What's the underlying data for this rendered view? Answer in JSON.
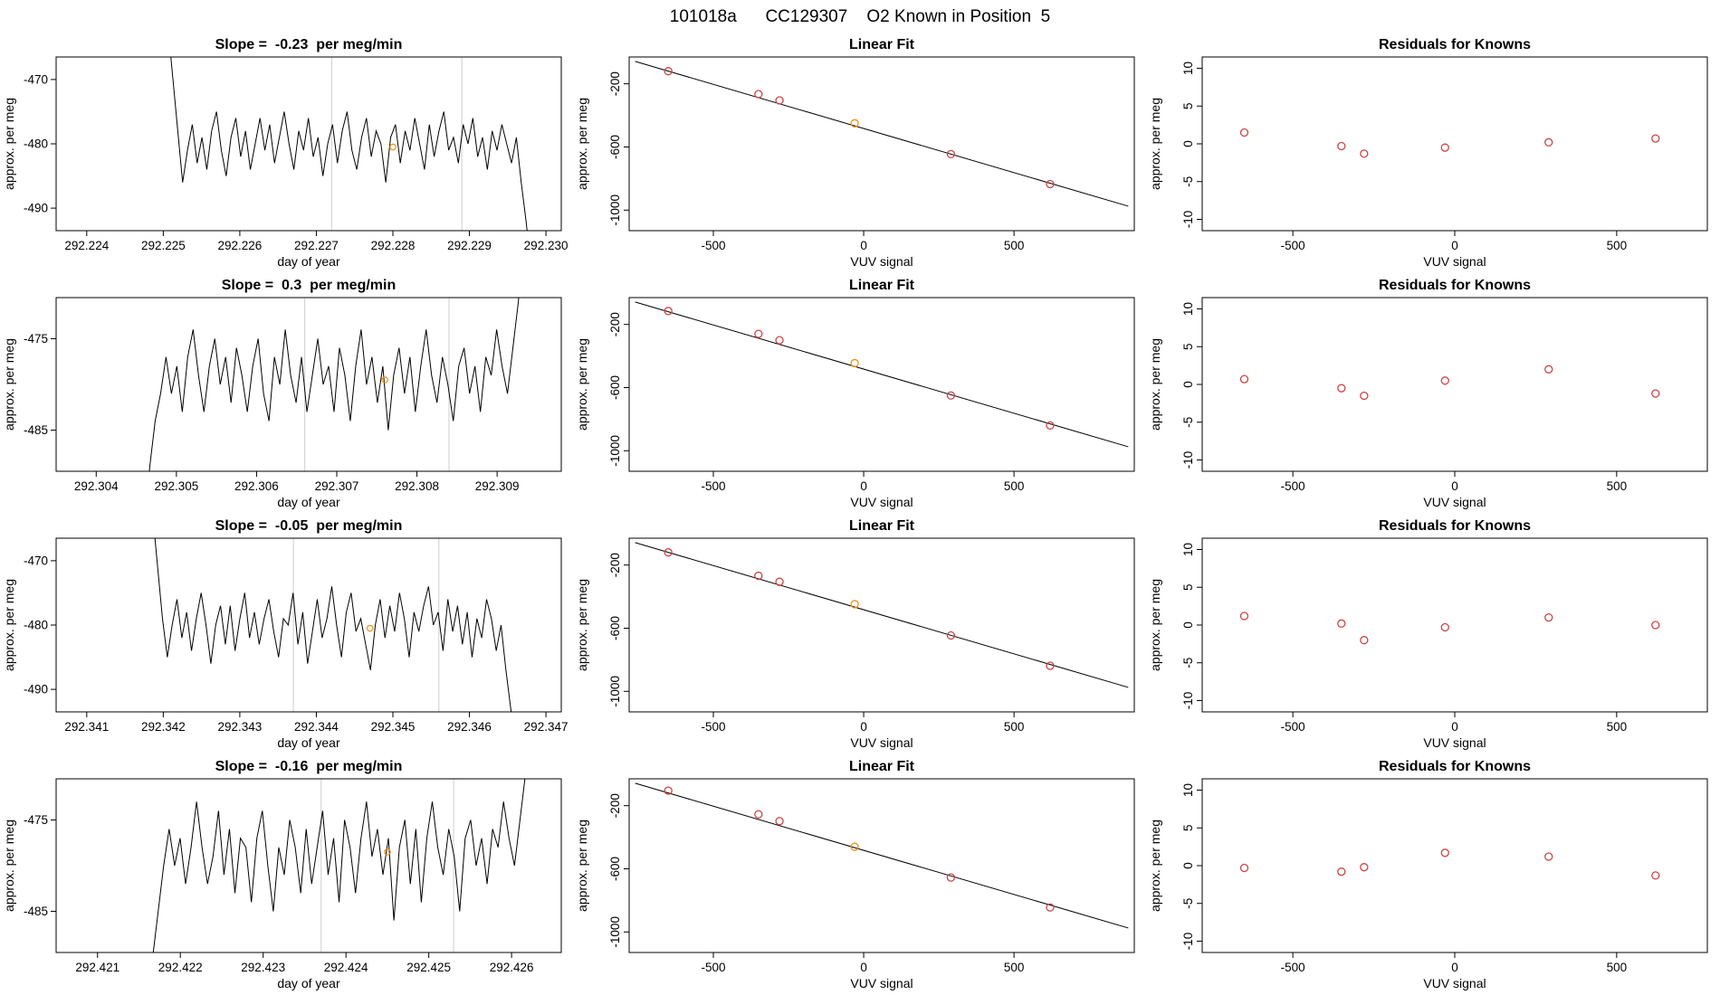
{
  "header": {
    "title": "101018a      CC129307    O2 Known in Position  5"
  },
  "colors": {
    "line": "#000000",
    "grid": "#d6d6d6",
    "point": "#cc4444",
    "orange": "#ef9118"
  },
  "chart_data": [
    {
      "type": "line",
      "title": "Slope =  -0.23  per meg/min",
      "xlabel": "day of year",
      "ylabel": "approx. per meg",
      "xlim": [
        292.2236,
        292.2302
      ],
      "ylim": [
        -493.5,
        -466.5
      ],
      "xticks": {
        "values": [
          292.224,
          292.225,
          292.226,
          292.227,
          292.228,
          292.229,
          292.23
        ],
        "labels": [
          "292.224",
          "292.225",
          "292.226",
          "292.227",
          "292.228",
          "292.229",
          "292.230"
        ]
      },
      "yticks": {
        "values": [
          -470,
          -480,
          -490
        ],
        "labels": [
          "-470",
          "-480",
          "-490"
        ]
      },
      "ytick_rotated": false,
      "vlines": [
        292.2272,
        292.2289
      ],
      "series": {
        "x_start": 292.225,
        "x_step": 6.32e-05,
        "y": [
          -455,
          -462,
          -470,
          -478,
          -486,
          -481,
          -477,
          -483,
          -479,
          -484,
          -478,
          -475,
          -481,
          -485,
          -479,
          -476,
          -482,
          -478,
          -484,
          -480,
          -476,
          -481,
          -477,
          -483,
          -479,
          -475,
          -480,
          -484,
          -478,
          -481,
          -476,
          -482,
          -479,
          -485,
          -480,
          -477,
          -483,
          -478,
          -475,
          -481,
          -484,
          -479,
          -476,
          -482,
          -478,
          -480,
          -486,
          -479,
          -477,
          -483,
          -478,
          -481,
          -476,
          -480,
          -484,
          -477,
          -482,
          -478,
          -475,
          -481,
          -479,
          -483,
          -477,
          -480,
          -476,
          -482,
          -479,
          -484,
          -478,
          -481,
          -477,
          -480,
          -483,
          -479,
          -486,
          -492,
          -499
        ]
      },
      "marker": {
        "x": 292.228,
        "y": -480.5
      }
    },
    {
      "type": "scatter",
      "title": "Linear Fit",
      "xlabel": "VUV signal",
      "ylabel": "approx. per meg",
      "xlim": [
        -780,
        900
      ],
      "ylim": [
        -1130,
        -30
      ],
      "xticks": {
        "values": [
          -500,
          0,
          500
        ],
        "labels": [
          "-500",
          "0",
          "500"
        ]
      },
      "yticks": {
        "values": [
          -200,
          -600,
          -1000
        ],
        "labels": [
          "-200",
          "-600",
          "-1000"
        ]
      },
      "ytick_rotated": true,
      "fit_line": [
        [
          -760,
          -58
        ],
        [
          880,
          -975
        ]
      ],
      "points": {
        "x": [
          -650,
          -350,
          -280,
          -30,
          290,
          620
        ],
        "y": [
          -120,
          -265,
          -305,
          -450,
          -645,
          -835
        ],
        "colors": [
          "red",
          "red",
          "red",
          "orange",
          "red",
          "red"
        ]
      }
    },
    {
      "type": "scatter",
      "title": "Residuals for Knowns",
      "xlabel": "VUV signal",
      "ylabel": "approx. per meg",
      "xlim": [
        -780,
        780
      ],
      "ylim": [
        -11.5,
        11.5
      ],
      "xticks": {
        "values": [
          -500,
          0,
          500
        ],
        "labels": [
          "-500",
          "0",
          "500"
        ]
      },
      "yticks": {
        "values": [
          10,
          5,
          0,
          -5,
          -10
        ],
        "labels": [
          "10",
          "5",
          "0",
          "-5",
          "-10"
        ]
      },
      "ytick_rotated": true,
      "points": {
        "x": [
          -650,
          -350,
          -280,
          -30,
          290,
          620
        ],
        "y": [
          1.5,
          -0.3,
          -1.3,
          -0.5,
          0.2,
          0.7
        ],
        "colors": [
          "red",
          "red",
          "red",
          "red",
          "red",
          "red"
        ]
      }
    },
    {
      "type": "line",
      "title": "Slope =  0.3  per meg/min",
      "xlabel": "day of year",
      "ylabel": "approx. per meg",
      "xlim": [
        292.3035,
        292.3098
      ],
      "ylim": [
        -489.5,
        -470.5
      ],
      "xticks": {
        "values": [
          292.304,
          292.305,
          292.306,
          292.307,
          292.308,
          292.309
        ],
        "labels": [
          "292.304",
          "292.305",
          "292.306",
          "292.307",
          "292.308",
          "292.309"
        ]
      },
      "yticks": {
        "values": [
          -475,
          -485
        ],
        "labels": [
          "-475",
          "-485"
        ]
      },
      "ytick_rotated": false,
      "vlines": [
        292.3066,
        292.3084
      ],
      "series": {
        "x_start": 292.3046,
        "x_step": 6.76e-05,
        "y": [
          -496,
          -489,
          -484,
          -481,
          -477,
          -481,
          -478,
          -483,
          -477,
          -474,
          -479,
          -483,
          -478,
          -475,
          -480,
          -477,
          -482,
          -476,
          -479,
          -483,
          -478,
          -475,
          -481,
          -484,
          -477,
          -480,
          -474,
          -479,
          -482,
          -477,
          -483,
          -479,
          -475,
          -480,
          -478,
          -483,
          -476,
          -479,
          -484,
          -478,
          -474,
          -480,
          -477,
          -482,
          -478,
          -485,
          -479,
          -476,
          -481,
          -477,
          -483,
          -478,
          -474,
          -479,
          -482,
          -477,
          -480,
          -484,
          -478,
          -476,
          -481,
          -478,
          -483,
          -477,
          -479,
          -474,
          -478,
          -481,
          -476,
          -471,
          -464,
          -456
        ]
      },
      "marker": {
        "x": 292.3076,
        "y": -479.5
      }
    },
    {
      "type": "scatter",
      "title": "Linear Fit",
      "xlabel": "VUV signal",
      "ylabel": "approx. per meg",
      "xlim": [
        -780,
        900
      ],
      "ylim": [
        -1130,
        -30
      ],
      "xticks": {
        "values": [
          -500,
          0,
          500
        ],
        "labels": [
          "-500",
          "0",
          "500"
        ]
      },
      "yticks": {
        "values": [
          -200,
          -600,
          -1000
        ],
        "labels": [
          "-200",
          "-600",
          "-1000"
        ]
      },
      "ytick_rotated": true,
      "fit_line": [
        [
          -760,
          -58
        ],
        [
          880,
          -975
        ]
      ],
      "points": {
        "x": [
          -650,
          -350,
          -280,
          -30,
          290,
          620
        ],
        "y": [
          -115,
          -260,
          -300,
          -445,
          -650,
          -840
        ],
        "colors": [
          "red",
          "red",
          "red",
          "orange",
          "red",
          "red"
        ]
      }
    },
    {
      "type": "scatter",
      "title": "Residuals for Knowns",
      "xlabel": "VUV signal",
      "ylabel": "approx. per meg",
      "xlim": [
        -780,
        780
      ],
      "ylim": [
        -11.5,
        11.5
      ],
      "xticks": {
        "values": [
          -500,
          0,
          500
        ],
        "labels": [
          "-500",
          "0",
          "500"
        ]
      },
      "yticks": {
        "values": [
          10,
          5,
          0,
          -5,
          -10
        ],
        "labels": [
          "10",
          "5",
          "0",
          "-5",
          "-10"
        ]
      },
      "ytick_rotated": true,
      "points": {
        "x": [
          -650,
          -350,
          -280,
          -30,
          290,
          620
        ],
        "y": [
          0.7,
          -0.5,
          -1.5,
          0.5,
          2.0,
          -1.2
        ],
        "colors": [
          "red",
          "red",
          "red",
          "red",
          "red",
          "red"
        ]
      }
    },
    {
      "type": "line",
      "title": "Slope =  -0.05  per meg/min",
      "xlabel": "day of year",
      "ylabel": "approx. per meg",
      "xlim": [
        292.3406,
        292.3472
      ],
      "ylim": [
        -493.5,
        -466.5
      ],
      "xticks": {
        "values": [
          292.341,
          292.342,
          292.343,
          292.344,
          292.345,
          292.346,
          292.347
        ],
        "labels": [
          "292.341",
          "292.342",
          "292.343",
          "292.344",
          "292.345",
          "292.346",
          "292.347"
        ]
      },
      "yticks": {
        "values": [
          -470,
          -480,
          -490
        ],
        "labels": [
          "-470",
          "-480",
          "-490"
        ]
      },
      "ytick_rotated": false,
      "vlines": [
        292.3437,
        292.3456
      ],
      "series": {
        "x_start": 292.3418,
        "x_step": 6.32e-05,
        "y": [
          -456,
          -463,
          -471,
          -479,
          -485,
          -480,
          -476,
          -482,
          -478,
          -484,
          -479,
          -475,
          -480,
          -486,
          -480,
          -477,
          -483,
          -477,
          -484,
          -479,
          -475,
          -482,
          -478,
          -483,
          -479,
          -476,
          -481,
          -485,
          -479,
          -480,
          -475,
          -483,
          -478,
          -486,
          -481,
          -476,
          -482,
          -479,
          -474,
          -480,
          -485,
          -478,
          -475,
          -481,
          -479,
          -483,
          -487,
          -480,
          -476,
          -482,
          -477,
          -481,
          -475,
          -479,
          -485,
          -478,
          -481,
          -477,
          -474,
          -480,
          -478,
          -484,
          -476,
          -481,
          -477,
          -483,
          -478,
          -485,
          -479,
          -482,
          -476,
          -479,
          -484,
          -480,
          -487,
          -493,
          -499
        ]
      },
      "marker": {
        "x": 292.3447,
        "y": -480.5
      }
    },
    {
      "type": "scatter",
      "title": "Linear Fit",
      "xlabel": "VUV signal",
      "ylabel": "approx. per meg",
      "xlim": [
        -780,
        900
      ],
      "ylim": [
        -1130,
        -30
      ],
      "xticks": {
        "values": [
          -500,
          0,
          500
        ],
        "labels": [
          "-500",
          "0",
          "500"
        ]
      },
      "yticks": {
        "values": [
          -200,
          -600,
          -1000
        ],
        "labels": [
          "-200",
          "-600",
          "-1000"
        ]
      },
      "ytick_rotated": true,
      "fit_line": [
        [
          -760,
          -58
        ],
        [
          880,
          -975
        ]
      ],
      "points": {
        "x": [
          -650,
          -350,
          -280,
          -30,
          290,
          620
        ],
        "y": [
          -120,
          -268,
          -306,
          -448,
          -646,
          -838
        ],
        "colors": [
          "red",
          "red",
          "red",
          "orange",
          "red",
          "red"
        ]
      }
    },
    {
      "type": "scatter",
      "title": "Residuals for Knowns",
      "xlabel": "VUV signal",
      "ylabel": "approx. per meg",
      "xlim": [
        -780,
        780
      ],
      "ylim": [
        -11.5,
        11.5
      ],
      "xticks": {
        "values": [
          -500,
          0,
          500
        ],
        "labels": [
          "-500",
          "0",
          "500"
        ]
      },
      "yticks": {
        "values": [
          10,
          5,
          0,
          -5,
          -10
        ],
        "labels": [
          "10",
          "5",
          "0",
          "-5",
          "-10"
        ]
      },
      "ytick_rotated": true,
      "points": {
        "x": [
          -650,
          -350,
          -280,
          -30,
          290,
          620
        ],
        "y": [
          1.2,
          0.2,
          -2.0,
          -0.3,
          1.0,
          0.0
        ],
        "colors": [
          "red",
          "red",
          "red",
          "red",
          "red",
          "red"
        ]
      }
    },
    {
      "type": "line",
      "title": "Slope =  -0.16  per meg/min",
      "xlabel": "day of year",
      "ylabel": "approx. per meg",
      "xlim": [
        292.4205,
        292.4266
      ],
      "ylim": [
        -489.5,
        -470.5
      ],
      "xticks": {
        "values": [
          292.421,
          292.422,
          292.423,
          292.424,
          292.425,
          292.426
        ],
        "labels": [
          "292.421",
          "292.422",
          "292.423",
          "292.424",
          "292.425",
          "292.426"
        ]
      },
      "yticks": {
        "values": [
          -475,
          -485
        ],
        "labels": [
          "-475",
          "-485"
        ]
      },
      "ytick_rotated": false,
      "vlines": [
        292.4237,
        292.4253
      ],
      "series": {
        "x_start": 292.4216,
        "x_step": 6.62e-05,
        "y": [
          -497,
          -490,
          -485,
          -480,
          -476,
          -480,
          -477,
          -482,
          -478,
          -473,
          -478,
          -482,
          -479,
          -474,
          -481,
          -476,
          -483,
          -477,
          -478,
          -484,
          -477,
          -474,
          -480,
          -485,
          -478,
          -481,
          -475,
          -478,
          -483,
          -476,
          -482,
          -478,
          -474,
          -481,
          -477,
          -484,
          -475,
          -478,
          -483,
          -477,
          -473,
          -479,
          -476,
          -481,
          -477,
          -486,
          -478,
          -475,
          -482,
          -476,
          -484,
          -477,
          -473,
          -478,
          -481,
          -476,
          -479,
          -485,
          -477,
          -475,
          -480,
          -477,
          -482,
          -476,
          -478,
          -473,
          -477,
          -480,
          -475,
          -470,
          -463,
          -455
        ]
      },
      "marker": {
        "x": 292.4245,
        "y": -478.5
      }
    },
    {
      "type": "scatter",
      "title": "Linear Fit",
      "xlabel": "VUV signal",
      "ylabel": "approx. per meg",
      "xlim": [
        -780,
        900
      ],
      "ylim": [
        -1130,
        -30
      ],
      "xticks": {
        "values": [
          -500,
          0,
          500
        ],
        "labels": [
          "-500",
          "0",
          "500"
        ]
      },
      "yticks": {
        "values": [
          -200,
          -600,
          -1000
        ],
        "labels": [
          "-200",
          "-600",
          "-1000"
        ]
      },
      "ytick_rotated": true,
      "fit_line": [
        [
          -760,
          -58
        ],
        [
          880,
          -975
        ]
      ],
      "points": {
        "x": [
          -650,
          -350,
          -280,
          -30,
          290,
          620
        ],
        "y": [
          -105,
          -255,
          -298,
          -460,
          -655,
          -845
        ],
        "colors": [
          "red",
          "red",
          "red",
          "orange",
          "red",
          "red"
        ]
      }
    },
    {
      "type": "scatter",
      "title": "Residuals for Knowns",
      "xlabel": "VUV signal",
      "ylabel": "approx. per meg",
      "xlim": [
        -780,
        780
      ],
      "ylim": [
        -11.5,
        11.5
      ],
      "xticks": {
        "values": [
          -500,
          0,
          500
        ],
        "labels": [
          "-500",
          "0",
          "500"
        ]
      },
      "yticks": {
        "values": [
          10,
          5,
          0,
          -5,
          -10
        ],
        "labels": [
          "10",
          "5",
          "0",
          "-5",
          "-10"
        ]
      },
      "ytick_rotated": true,
      "points": {
        "x": [
          -650,
          -350,
          -280,
          -30,
          290,
          620
        ],
        "y": [
          -0.3,
          -0.8,
          -0.2,
          1.7,
          1.2,
          -1.3
        ],
        "colors": [
          "red",
          "red",
          "red",
          "red",
          "red",
          "red"
        ]
      }
    }
  ]
}
